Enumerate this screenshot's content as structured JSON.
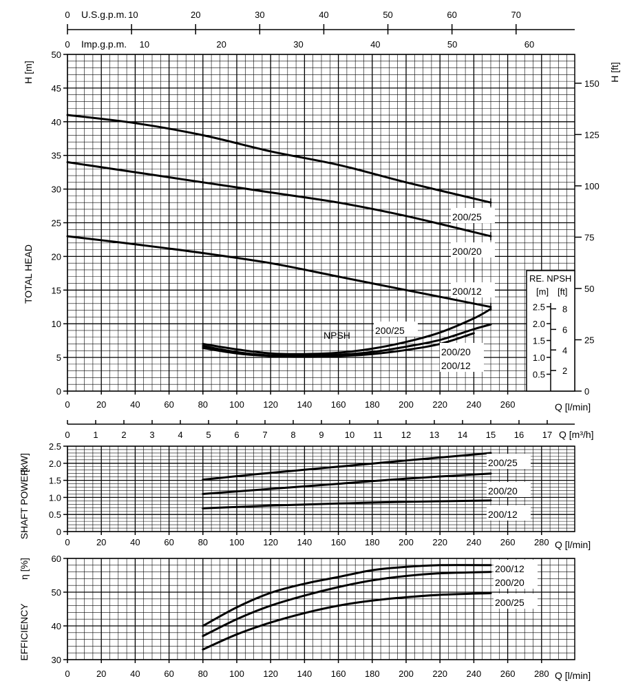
{
  "top_scales": {
    "usgpm": {
      "label": "U.S.g.p.m.",
      "ticks": [
        "0",
        "10",
        "20",
        "30",
        "40",
        "50",
        "60",
        "70"
      ]
    },
    "impgpm": {
      "label": "Imp.g.p.m.",
      "ticks": [
        "0",
        "10",
        "20",
        "30",
        "40",
        "50",
        "60"
      ]
    }
  },
  "m3h_scale": {
    "ticks": [
      "0",
      "1",
      "2",
      "3",
      "4",
      "5",
      "6",
      "7",
      "8",
      "9",
      "10",
      "11",
      "12",
      "13",
      "14",
      "15",
      "16",
      "17"
    ],
    "unit": "Q [m³/h]"
  },
  "chart_data": [
    {
      "type": "line",
      "name": "head",
      "ylabel": "TOTAL HEAD",
      "ylabel_unit": "H [m]",
      "right_unit": "H [ft]",
      "xlabel": "Q [l/min]",
      "xlim": [
        0,
        300
      ],
      "ylim": [
        0,
        50
      ],
      "x_ticks": [
        "0",
        "20",
        "40",
        "60",
        "80",
        "100",
        "120",
        "140",
        "160",
        "180",
        "200",
        "220",
        "240",
        "260"
      ],
      "y_ticks": [
        "0",
        "5",
        "10",
        "15",
        "20",
        "25",
        "30",
        "35",
        "40",
        "45",
        "50"
      ],
      "right_ticks": [
        "0",
        "25",
        "50",
        "75",
        "100",
        "125",
        "150"
      ],
      "grid": true,
      "series": [
        {
          "name": "200/25",
          "x": [
            0,
            40,
            80,
            120,
            160,
            200,
            250
          ],
          "y": [
            41,
            39.8,
            38,
            35.6,
            33.6,
            31,
            28
          ]
        },
        {
          "name": "200/20",
          "x": [
            0,
            40,
            80,
            120,
            160,
            200,
            250
          ],
          "y": [
            34,
            32.5,
            31,
            29.5,
            28,
            26,
            23
          ]
        },
        {
          "name": "200/12",
          "x": [
            0,
            40,
            80,
            120,
            160,
            200,
            250
          ],
          "y": [
            23,
            21.8,
            20.5,
            19,
            17,
            15,
            12.5
          ]
        }
      ],
      "npsh_label": "NPSH",
      "npsh_series": [
        {
          "name": "200/25",
          "x": [
            80,
            100,
            120,
            140,
            160,
            180,
            200,
            220,
            240,
            250
          ],
          "y": [
            7,
            6.2,
            5.6,
            5.5,
            5.7,
            6.3,
            7.3,
            8.7,
            10.8,
            12.2
          ]
        },
        {
          "name": "200/20",
          "x": [
            80,
            100,
            120,
            140,
            160,
            180,
            200,
            220,
            240,
            250
          ],
          "y": [
            6.7,
            5.8,
            5.3,
            5.3,
            5.4,
            5.8,
            6.6,
            7.6,
            9.2,
            9.9
          ]
        },
        {
          "name": "200/12",
          "x": [
            80,
            100,
            120,
            140,
            160,
            180,
            200,
            220,
            240
          ],
          "y": [
            6.4,
            5.6,
            5.2,
            5.1,
            5.2,
            5.5,
            6.1,
            7,
            8.6
          ]
        }
      ],
      "npsh_box": {
        "title": "RE. NPSH",
        "units": [
          "[m]",
          "[ft]"
        ],
        "m_ticks": [
          "0.5",
          "1.0",
          "1.5",
          "2.0",
          "2.5"
        ],
        "ft_ticks": [
          "2",
          "4",
          "6",
          "8"
        ]
      }
    },
    {
      "type": "line",
      "name": "shaft-power",
      "ylabel": "SHAFT POWER",
      "ylabel_unit": "[kW]",
      "xlabel": "Q [l/min]",
      "xlim": [
        0,
        300
      ],
      "ylim": [
        0,
        2.5
      ],
      "x_ticks": [
        "0",
        "20",
        "40",
        "60",
        "80",
        "100",
        "120",
        "140",
        "160",
        "180",
        "200",
        "220",
        "240",
        "260",
        "280"
      ],
      "y_ticks": [
        "0",
        "0.5",
        "1.0",
        "1.5",
        "2.0",
        "2.5"
      ],
      "grid": true,
      "series": [
        {
          "name": "200/25",
          "x": [
            80,
            120,
            160,
            200,
            250
          ],
          "y": [
            1.52,
            1.72,
            1.9,
            2.08,
            2.3
          ]
        },
        {
          "name": "200/20",
          "x": [
            80,
            120,
            160,
            200,
            250
          ],
          "y": [
            1.1,
            1.25,
            1.4,
            1.55,
            1.7
          ]
        },
        {
          "name": "200/12",
          "x": [
            80,
            120,
            160,
            200,
            250
          ],
          "y": [
            0.68,
            0.76,
            0.82,
            0.87,
            0.91
          ]
        }
      ]
    },
    {
      "type": "line",
      "name": "efficiency",
      "ylabel": "EFFICIENCY",
      "ylabel_unit": "η [%]",
      "xlabel": "Q [l/min]",
      "xlim": [
        0,
        300
      ],
      "ylim": [
        30,
        60
      ],
      "x_ticks": [
        "0",
        "20",
        "40",
        "60",
        "80",
        "100",
        "120",
        "140",
        "160",
        "180",
        "200",
        "220",
        "240",
        "260",
        "280"
      ],
      "y_ticks": [
        "30",
        "40",
        "50",
        "60"
      ],
      "grid": true,
      "series": [
        {
          "name": "200/12",
          "x": [
            80,
            100,
            120,
            140,
            160,
            180,
            200,
            220,
            250
          ],
          "y": [
            40,
            45.5,
            49.8,
            52.5,
            54.5,
            56.5,
            57.5,
            58,
            58
          ]
        },
        {
          "name": "200/20",
          "x": [
            80,
            100,
            120,
            140,
            160,
            180,
            200,
            220,
            250
          ],
          "y": [
            37,
            42,
            46,
            49,
            51.5,
            53.5,
            54.8,
            55.6,
            56
          ]
        },
        {
          "name": "200/25",
          "x": [
            80,
            100,
            120,
            140,
            160,
            180,
            200,
            220,
            250
          ],
          "y": [
            33,
            37.5,
            41,
            43.8,
            46,
            47.5,
            48.5,
            49.2,
            49.7
          ]
        }
      ]
    }
  ]
}
